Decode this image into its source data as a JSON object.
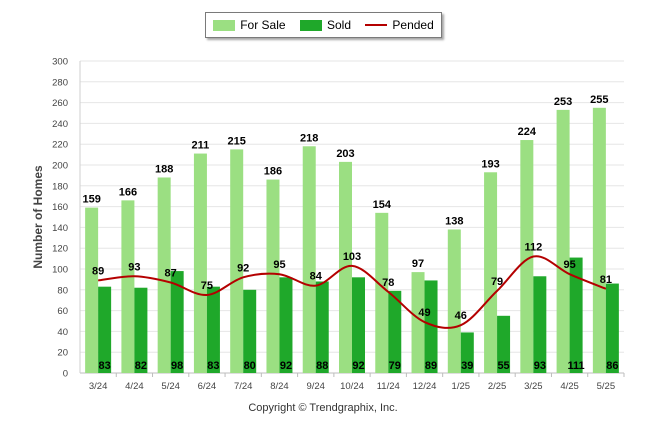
{
  "chart_data": {
    "type": "bar",
    "categories": [
      "3/24",
      "4/24",
      "5/24",
      "6/24",
      "7/24",
      "8/24",
      "9/24",
      "10/24",
      "11/24",
      "12/24",
      "1/25",
      "2/25",
      "3/25",
      "4/25",
      "5/25"
    ],
    "series": [
      {
        "name": "For Sale",
        "type": "bar",
        "color": "#9bdf82",
        "values": [
          159,
          166,
          188,
          211,
          215,
          186,
          218,
          203,
          154,
          97,
          138,
          193,
          224,
          253,
          255
        ]
      },
      {
        "name": "Sold",
        "type": "bar",
        "color": "#1fa82a",
        "values": [
          83,
          82,
          98,
          83,
          80,
          92,
          88,
          92,
          79,
          89,
          39,
          55,
          93,
          111,
          86
        ]
      },
      {
        "name": "Pended",
        "type": "line",
        "color": "#b40000",
        "values": [
          89,
          93,
          87,
          75,
          92,
          95,
          84,
          103,
          78,
          49,
          46,
          79,
          112,
          95,
          81
        ]
      }
    ],
    "ylabel": "Number of Homes",
    "xlabel": "",
    "ylim": [
      0,
      300
    ],
    "yticks": [
      0,
      20,
      40,
      60,
      80,
      100,
      120,
      140,
      160,
      180,
      200,
      220,
      240,
      260,
      280,
      300
    ],
    "grid": true,
    "legend_position": "top-center"
  },
  "footer": {
    "copyright": "Copyright © Trendgraphix, Inc."
  }
}
